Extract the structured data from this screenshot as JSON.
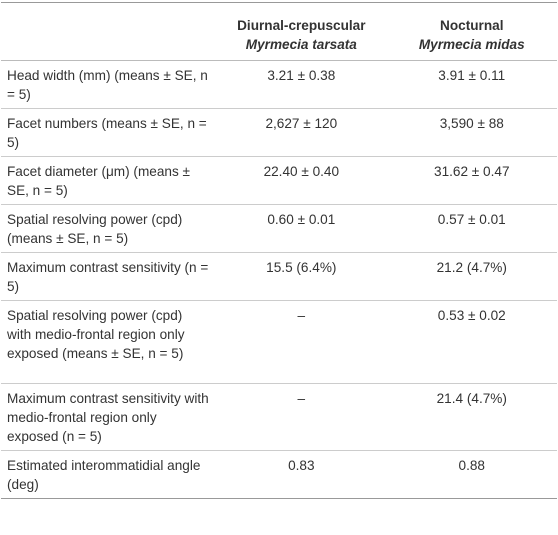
{
  "table": {
    "columns": [
      {
        "group": "Diurnal-crepuscular",
        "species": "Myrmecia tarsata"
      },
      {
        "group": "Nocturnal",
        "species": "Myrmecia midas"
      }
    ],
    "rows": [
      [
        "Head width (mm) (means ± SE, n = 5)",
        "3.21 ± 0.38",
        "3.91 ± 0.11"
      ],
      [
        "Facet numbers (means ± SE, n = 5)",
        "2,627 ± 120",
        "3,590 ± 88"
      ],
      [
        "Facet diameter (μm) (means ± SE, n = 5)",
        "22.40 ± 0.40",
        "31.62 ± 0.47"
      ],
      [
        "Spatial resolving power (cpd) (means ± SE, n = 5)",
        "0.60 ± 0.01",
        "0.57 ± 0.01"
      ],
      [
        "Maximum contrast sensitivity (n = 5)",
        "15.5 (6.4%)",
        "21.2 (4.7%)"
      ],
      [
        "Spatial resolving power (cpd) with medio-frontal region only exposed (means ± SE, n = 5)",
        "–",
        "0.53 ± 0.02"
      ],
      [
        "Maximum contrast sensitivity with medio-frontal region only exposed (n = 5)",
        "–",
        "21.4 (4.7%)"
      ],
      [
        "Estimated interommatidial angle (deg)",
        "0.83",
        "0.88"
      ]
    ]
  }
}
